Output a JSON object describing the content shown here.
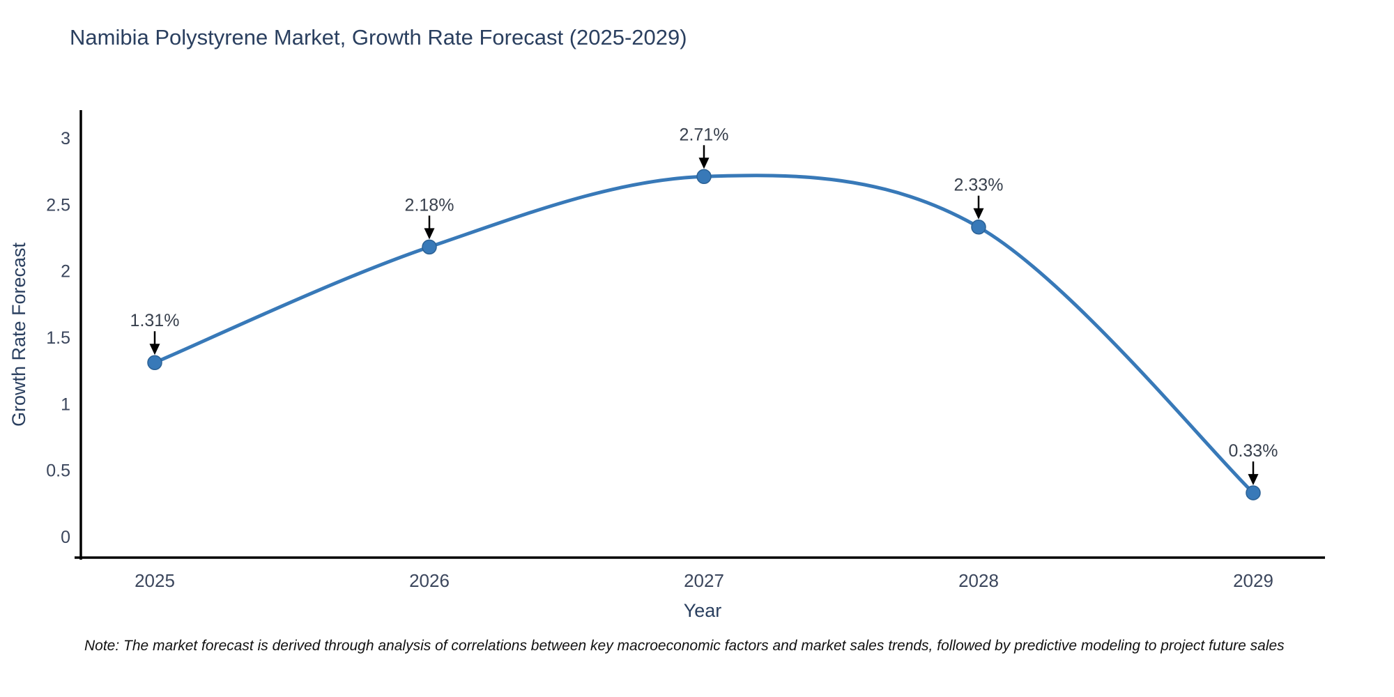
{
  "page": {
    "title": "Namibia Polystyrene Market, Growth Rate Forecast (2025-2029)",
    "note": "Note: The market forecast is derived through analysis of correlations between key macroeconomic factors and market sales trends, followed by predictive modeling to project future sales"
  },
  "chart_data": {
    "type": "line",
    "title": "Namibia Polystyrene Market, Growth Rate Forecast (2025-2029)",
    "categories": [
      "2025",
      "2026",
      "2027",
      "2028",
      "2029"
    ],
    "values": [
      1.31,
      2.18,
      2.71,
      2.33,
      0.33
    ],
    "point_labels": [
      "1.31%",
      "2.18%",
      "2.71%",
      "2.33%",
      "0.33%"
    ],
    "xlabel": "Year",
    "ylabel": "Growth Rate Forecast",
    "yticks": [
      0,
      0.5,
      1,
      1.5,
      2,
      2.5,
      3
    ],
    "ylim": [
      -0.17,
      3.25
    ],
    "xlim": [
      "2024.71",
      "2029.27"
    ],
    "grid": false,
    "legend": "none",
    "line_shape": "spline",
    "marker": "circle-with-down-arrow-annotation",
    "colors": {
      "line": "#3879b8",
      "marker": "#3879b8",
      "marker_edge": "#2b6195",
      "axis": "#000000",
      "title_text": "#2a3f5f",
      "tick_text": "#3b465c",
      "axis_label_text": "#2a3f5f",
      "annotation_text": "#38404d",
      "arrow": "#000000",
      "background": "#ffffff"
    }
  }
}
